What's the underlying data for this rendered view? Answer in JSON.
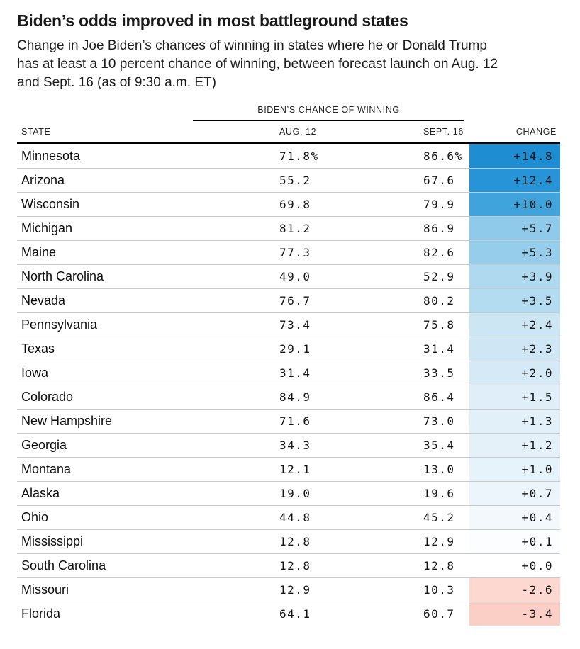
{
  "title": "Biden’s odds improved in most battleground states",
  "subtitle": "Change in Joe Biden’s chances of winning in states where he or Donald Trump has at least a 10 percent chance of winning, between forecast launch on Aug. 12 and Sept. 16 (as of 9:30 a.m. ET)",
  "table": {
    "group_header": "BIDEN’S CHANCE OF WINNING",
    "columns": {
      "state": "STATE",
      "aug12": "AUG. 12",
      "sept16": "SEPT. 16",
      "change": "CHANGE"
    },
    "rows": [
      {
        "state": "Minnesota",
        "aug12": "71.8%",
        "sept16": "86.6%",
        "change": "+14.8",
        "change_bg": "#1e8dd2"
      },
      {
        "state": "Arizona",
        "aug12": "55.2",
        "sept16": "67.6",
        "change": "+12.4",
        "change_bg": "#2694d6"
      },
      {
        "state": "Wisconsin",
        "aug12": "69.8",
        "sept16": "79.9",
        "change": "+10.0",
        "change_bg": "#41a3dc"
      },
      {
        "state": "Michigan",
        "aug12": "81.2",
        "sept16": "86.9",
        "change": "+5.7",
        "change_bg": "#8fcaea"
      },
      {
        "state": "Maine",
        "aug12": "77.3",
        "sept16": "82.6",
        "change": "+5.3",
        "change_bg": "#95cdeb"
      },
      {
        "state": "North Carolina",
        "aug12": "49.0",
        "sept16": "52.9",
        "change": "+3.9",
        "change_bg": "#aed9ef"
      },
      {
        "state": "Nevada",
        "aug12": "76.7",
        "sept16": "80.2",
        "change": "+3.5",
        "change_bg": "#b4dcf0"
      },
      {
        "state": "Pennsylvania",
        "aug12": "73.4",
        "sept16": "75.8",
        "change": "+2.4",
        "change_bg": "#cde6f4"
      },
      {
        "state": "Texas",
        "aug12": "29.1",
        "sept16": "31.4",
        "change": "+2.3",
        "change_bg": "#cfe7f5"
      },
      {
        "state": "Iowa",
        "aug12": "31.4",
        "sept16": "33.5",
        "change": "+2.0",
        "change_bg": "#d5eaf6"
      },
      {
        "state": "Colorado",
        "aug12": "84.9",
        "sept16": "86.4",
        "change": "+1.5",
        "change_bg": "#dfeef8"
      },
      {
        "state": "New Hampshire",
        "aug12": "71.6",
        "sept16": "73.0",
        "change": "+1.3",
        "change_bg": "#e2f0f9"
      },
      {
        "state": "Georgia",
        "aug12": "34.3",
        "sept16": "35.4",
        "change": "+1.2",
        "change_bg": "#e4f1f9"
      },
      {
        "state": "Montana",
        "aug12": "12.1",
        "sept16": "13.0",
        "change": "+1.0",
        "change_bg": "#e7f3fa"
      },
      {
        "state": "Alaska",
        "aug12": "19.0",
        "sept16": "19.6",
        "change": "+0.7",
        "change_bg": "#ecf5fb"
      },
      {
        "state": "Ohio",
        "aug12": "44.8",
        "sept16": "45.2",
        "change": "+0.4",
        "change_bg": "#f2f8fc"
      },
      {
        "state": "Mississippi",
        "aug12": "12.8",
        "sept16": "12.9",
        "change": "+0.1",
        "change_bg": "#fbfdfe"
      },
      {
        "state": "South Carolina",
        "aug12": "12.8",
        "sept16": "12.8",
        "change": "+0.0",
        "change_bg": "#ffffff"
      },
      {
        "state": "Missouri",
        "aug12": "12.9",
        "sept16": "10.3",
        "change": "-2.6",
        "change_bg": "#fdd8d1"
      },
      {
        "state": "Florida",
        "aug12": "64.1",
        "sept16": "60.7",
        "change": "-3.4",
        "change_bg": "#fccfc6"
      }
    ]
  },
  "colors": {
    "positive_strong": "#1e8dd2",
    "positive_light": "#f2f8fc",
    "negative": "#fccfc6",
    "separator": "#c9c9c9",
    "rule": "#000000"
  },
  "chart_data": {
    "type": "table",
    "title": "Biden’s odds improved in most battleground states",
    "subtitle": "Change in Joe Biden’s chances of winning in states where he or Donald Trump has at least a 10 percent chance of winning, between forecast launch on Aug. 12 and Sept. 16 (as of 9:30 a.m. ET)",
    "group_header": "BIDEN’S CHANCE OF WINNING",
    "columns": [
      "STATE",
      "AUG. 12",
      "SEPT. 16",
      "CHANGE"
    ],
    "unit": "percent chance of winning",
    "rows": [
      [
        "Minnesota",
        71.8,
        86.6,
        14.8
      ],
      [
        "Arizona",
        55.2,
        67.6,
        12.4
      ],
      [
        "Wisconsin",
        69.8,
        79.9,
        10.0
      ],
      [
        "Michigan",
        81.2,
        86.9,
        5.7
      ],
      [
        "Maine",
        77.3,
        82.6,
        5.3
      ],
      [
        "North Carolina",
        49.0,
        52.9,
        3.9
      ],
      [
        "Nevada",
        76.7,
        80.2,
        3.5
      ],
      [
        "Pennsylvania",
        73.4,
        75.8,
        2.4
      ],
      [
        "Texas",
        29.1,
        31.4,
        2.3
      ],
      [
        "Iowa",
        31.4,
        33.5,
        2.0
      ],
      [
        "Colorado",
        84.9,
        86.4,
        1.5
      ],
      [
        "New Hampshire",
        71.6,
        73.0,
        1.3
      ],
      [
        "Georgia",
        34.3,
        35.4,
        1.2
      ],
      [
        "Montana",
        12.1,
        13.0,
        1.0
      ],
      [
        "Alaska",
        19.0,
        19.6,
        0.7
      ],
      [
        "Ohio",
        44.8,
        45.2,
        0.4
      ],
      [
        "Mississippi",
        12.8,
        12.9,
        0.1
      ],
      [
        "South Carolina",
        12.8,
        12.8,
        0.0
      ],
      [
        "Missouri",
        12.9,
        10.3,
        -2.6
      ],
      [
        "Florida",
        64.1,
        60.7,
        -3.4
      ]
    ],
    "color_encoding": "change column: blue intensity scales with positive change, red/pink for negative change"
  }
}
